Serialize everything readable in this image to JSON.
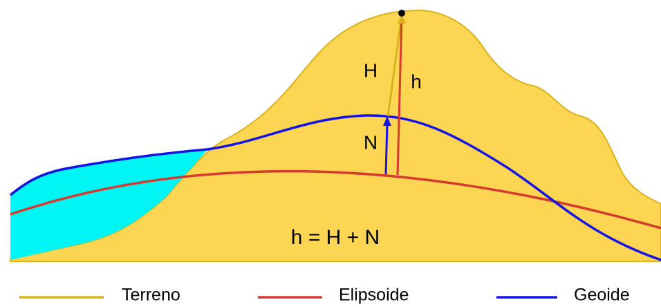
{
  "labels": {
    "H": "H",
    "h": "h",
    "N": "N"
  },
  "formula": "h = H + N",
  "legend": [
    {
      "label": "Terreno"
    },
    {
      "label": "Elipsoide"
    },
    {
      "label": "Geoide"
    }
  ]
}
